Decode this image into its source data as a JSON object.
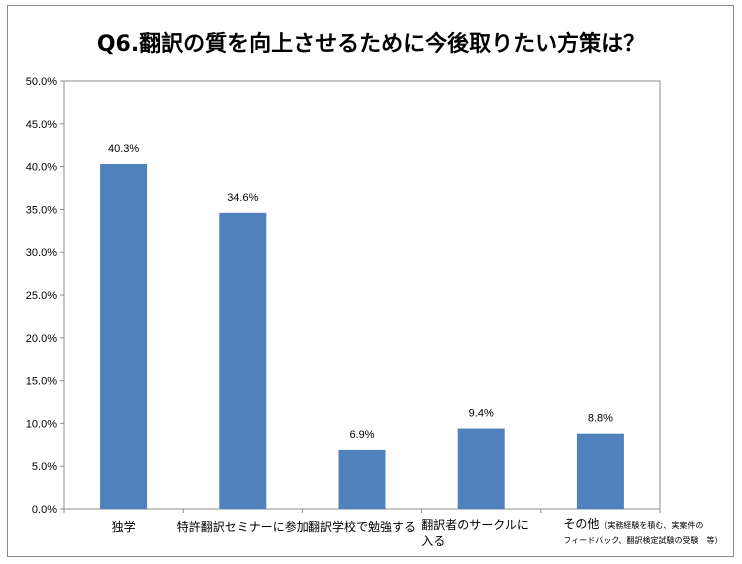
{
  "chart_data": {
    "type": "bar",
    "title": "Q6.翻訳の質を向上させるために今後取りたい方策は？",
    "categories": [
      [
        "独学"
      ],
      [
        "特許翻訳セミナーに参加"
      ],
      [
        "翻訳学校で勉強する"
      ],
      [
        "翻訳者のサークルに",
        "入る"
      ],
      [
        "その他"
      ]
    ],
    "category_notes": [
      "",
      "",
      "",
      "",
      "（実務経験を積む、実案件の フィードバック、翻訳検定試験の受験　等）"
    ],
    "values": [
      40.3,
      34.6,
      6.9,
      9.4,
      8.8
    ],
    "data_labels": [
      "40.3%",
      "34.6%",
      "6.9%",
      "9.4%",
      "8.8%"
    ],
    "y_ticks": [
      "0.0%",
      "5.0%",
      "10.0%",
      "15.0%",
      "20.0%",
      "25.0%",
      "30.0%",
      "35.0%",
      "40.0%",
      "45.0%",
      "50.0%"
    ],
    "ylim": [
      0,
      50
    ],
    "xlabel": "",
    "ylabel": "",
    "grid": false,
    "bar_color": "#4f81bd"
  }
}
